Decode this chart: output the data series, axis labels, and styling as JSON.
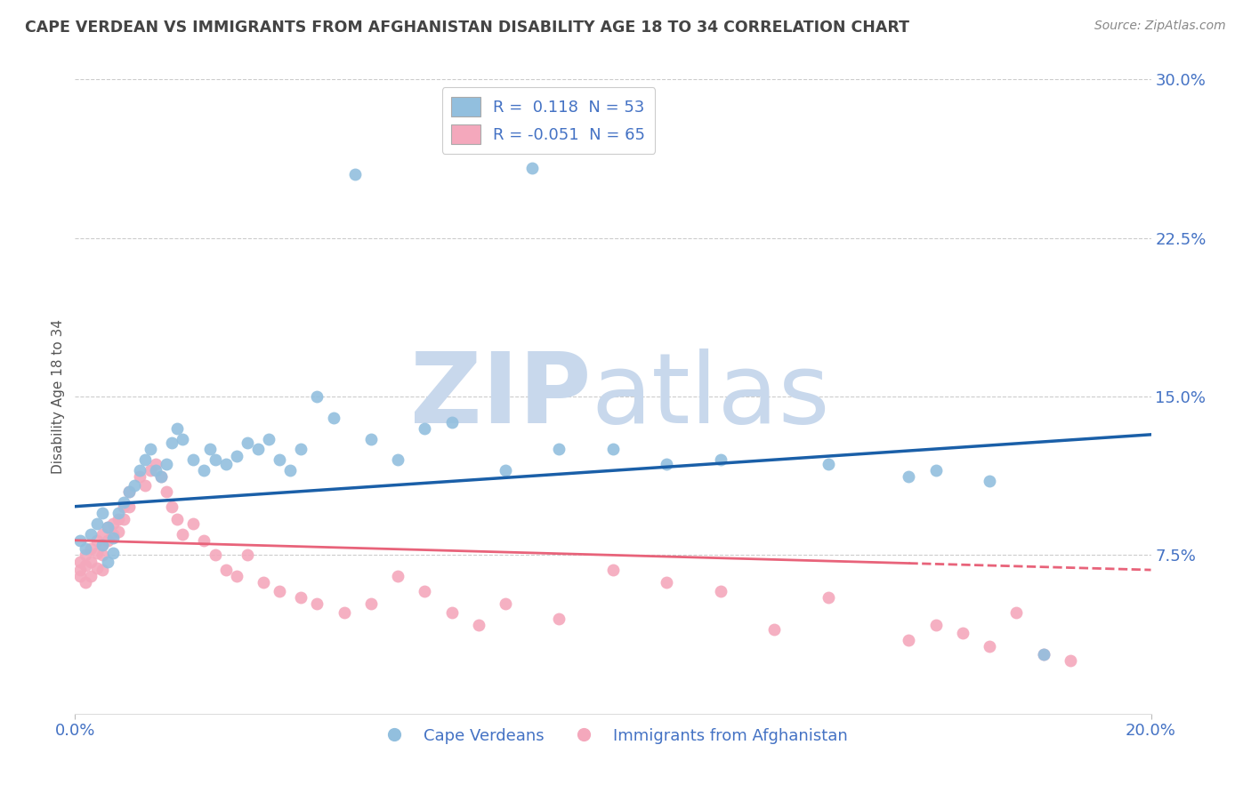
{
  "title": "CAPE VERDEAN VS IMMIGRANTS FROM AFGHANISTAN DISABILITY AGE 18 TO 34 CORRELATION CHART",
  "source": "Source: ZipAtlas.com",
  "ylabel": "Disability Age 18 to 34",
  "xmin": 0.0,
  "xmax": 0.2,
  "ymin": 0.0,
  "ymax": 0.3,
  "yticks": [
    0.075,
    0.15,
    0.225,
    0.3
  ],
  "ytick_labels": [
    "7.5%",
    "15.0%",
    "22.5%",
    "30.0%"
  ],
  "xticks": [
    0.0,
    0.2
  ],
  "xtick_labels": [
    "0.0%",
    "20.0%"
  ],
  "legend_r_blue": "0.118",
  "legend_n_blue": 53,
  "legend_r_pink": "-0.051",
  "legend_n_pink": 65,
  "blue_color": "#92bfde",
  "pink_color": "#f4a8bc",
  "trend_blue": "#1a5fa8",
  "trend_pink": "#e8637a",
  "legend_label_blue": "Cape Verdeans",
  "legend_label_pink": "Immigrants from Afghanistan",
  "blue_scatter_x": [
    0.001,
    0.002,
    0.003,
    0.004,
    0.005,
    0.005,
    0.006,
    0.006,
    0.007,
    0.007,
    0.008,
    0.009,
    0.01,
    0.011,
    0.012,
    0.013,
    0.014,
    0.015,
    0.016,
    0.017,
    0.018,
    0.019,
    0.02,
    0.022,
    0.024,
    0.025,
    0.026,
    0.028,
    0.03,
    0.032,
    0.034,
    0.036,
    0.038,
    0.04,
    0.042,
    0.045,
    0.048,
    0.052,
    0.055,
    0.06,
    0.065,
    0.07,
    0.08,
    0.085,
    0.09,
    0.1,
    0.11,
    0.12,
    0.14,
    0.155,
    0.16,
    0.17,
    0.18
  ],
  "blue_scatter_y": [
    0.082,
    0.078,
    0.085,
    0.09,
    0.095,
    0.08,
    0.088,
    0.072,
    0.083,
    0.076,
    0.095,
    0.1,
    0.105,
    0.108,
    0.115,
    0.12,
    0.125,
    0.115,
    0.112,
    0.118,
    0.128,
    0.135,
    0.13,
    0.12,
    0.115,
    0.125,
    0.12,
    0.118,
    0.122,
    0.128,
    0.125,
    0.13,
    0.12,
    0.115,
    0.125,
    0.15,
    0.14,
    0.255,
    0.13,
    0.12,
    0.135,
    0.138,
    0.115,
    0.258,
    0.125,
    0.125,
    0.118,
    0.12,
    0.118,
    0.112,
    0.115,
    0.11,
    0.028
  ],
  "pink_scatter_x": [
    0.001,
    0.001,
    0.001,
    0.002,
    0.002,
    0.002,
    0.003,
    0.003,
    0.003,
    0.004,
    0.004,
    0.004,
    0.005,
    0.005,
    0.005,
    0.005,
    0.006,
    0.006,
    0.007,
    0.007,
    0.008,
    0.008,
    0.009,
    0.009,
    0.01,
    0.01,
    0.012,
    0.013,
    0.014,
    0.015,
    0.016,
    0.017,
    0.018,
    0.019,
    0.02,
    0.022,
    0.024,
    0.026,
    0.028,
    0.03,
    0.032,
    0.035,
    0.038,
    0.042,
    0.045,
    0.05,
    0.055,
    0.06,
    0.065,
    0.07,
    0.075,
    0.08,
    0.09,
    0.1,
    0.11,
    0.12,
    0.13,
    0.14,
    0.155,
    0.16,
    0.165,
    0.17,
    0.175,
    0.18,
    0.185
  ],
  "pink_scatter_y": [
    0.072,
    0.068,
    0.065,
    0.075,
    0.07,
    0.062,
    0.078,
    0.072,
    0.065,
    0.082,
    0.076,
    0.069,
    0.085,
    0.08,
    0.075,
    0.068,
    0.088,
    0.082,
    0.09,
    0.085,
    0.092,
    0.086,
    0.098,
    0.092,
    0.105,
    0.098,
    0.112,
    0.108,
    0.115,
    0.118,
    0.112,
    0.105,
    0.098,
    0.092,
    0.085,
    0.09,
    0.082,
    0.075,
    0.068,
    0.065,
    0.075,
    0.062,
    0.058,
    0.055,
    0.052,
    0.048,
    0.052,
    0.065,
    0.058,
    0.048,
    0.042,
    0.052,
    0.045,
    0.068,
    0.062,
    0.058,
    0.04,
    0.055,
    0.035,
    0.042,
    0.038,
    0.032,
    0.048,
    0.028,
    0.025
  ],
  "trend_blue_x0": 0.0,
  "trend_blue_y0": 0.098,
  "trend_blue_x1": 0.2,
  "trend_blue_y1": 0.132,
  "trend_pink_x0": 0.0,
  "trend_pink_y0": 0.082,
  "trend_pink_x1": 0.2,
  "trend_pink_y1": 0.068,
  "trend_pink_solid_end": 0.155,
  "background_color": "#ffffff",
  "grid_color": "#cccccc",
  "axis_color": "#4472c4",
  "title_color": "#444444"
}
